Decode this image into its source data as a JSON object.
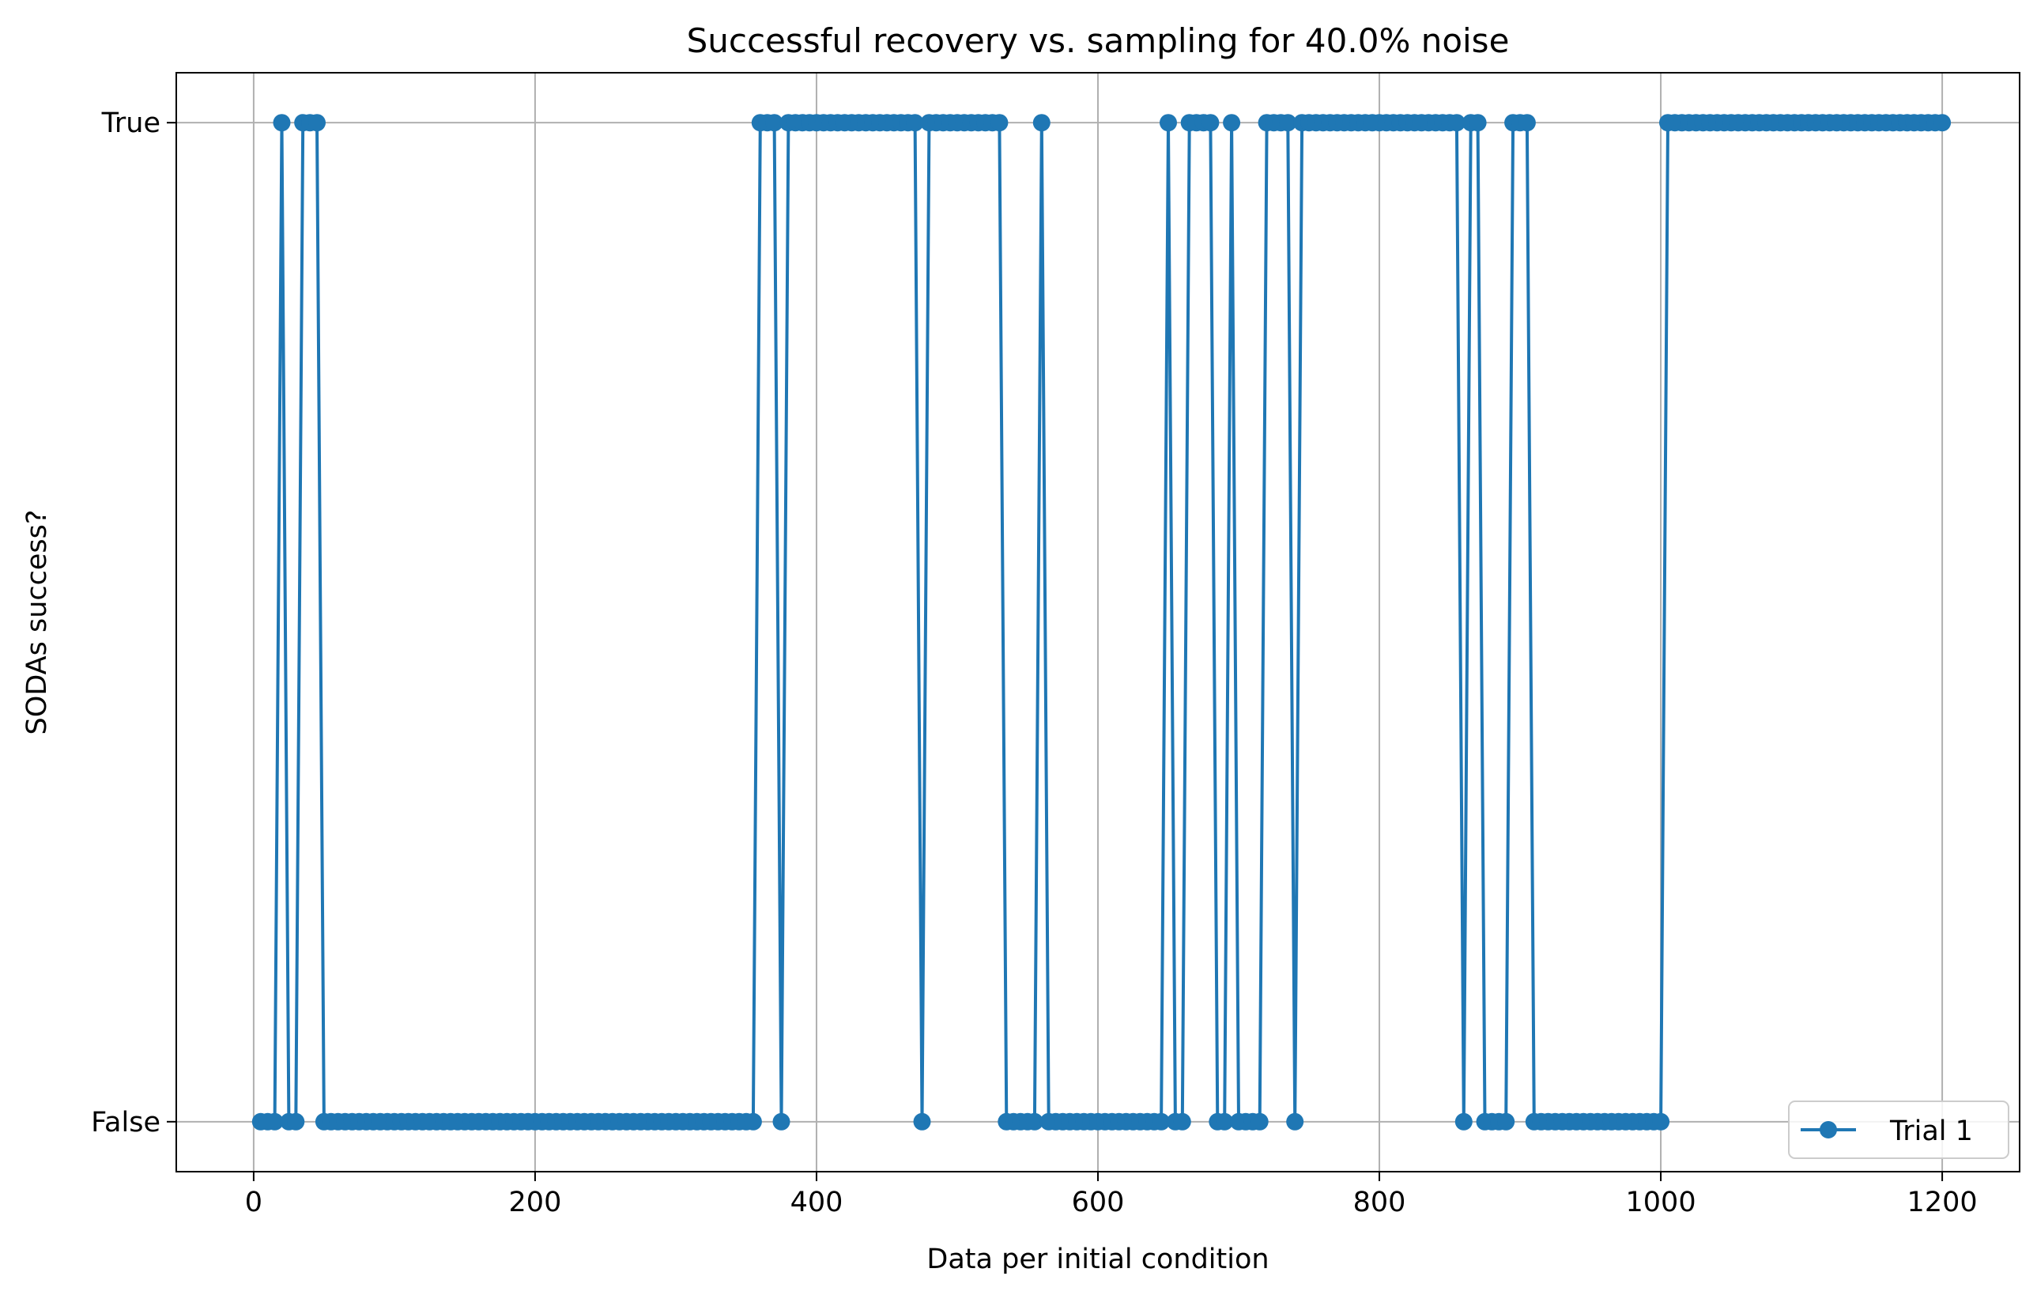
{
  "chart_data": {
    "type": "line",
    "title": "Successful recovery vs. sampling for 40.0% noise",
    "xlabel": "Data per initial condition",
    "ylabel": "SODAs success?",
    "xlim": [
      -55,
      1255
    ],
    "ylim": [
      -0.05,
      1.05
    ],
    "xticks": [
      0,
      200,
      400,
      600,
      800,
      1000,
      1200
    ],
    "xtick_labels": [
      "0",
      "200",
      "400",
      "600",
      "800",
      "1000",
      "1200"
    ],
    "yticks": [
      0,
      1
    ],
    "ytick_labels": [
      "False",
      "True"
    ],
    "grid": true,
    "legend_position": "lower-right",
    "marker": "circle",
    "series": [
      {
        "name": "Trial 1",
        "color": "#1f77b4",
        "x_start": 5,
        "x_step": 5,
        "values": [
          0,
          0,
          0,
          1,
          0,
          0,
          1,
          1,
          1,
          0,
          0,
          0,
          0,
          0,
          0,
          0,
          0,
          0,
          0,
          0,
          0,
          0,
          0,
          0,
          0,
          0,
          0,
          0,
          0,
          0,
          0,
          0,
          0,
          0,
          0,
          0,
          0,
          0,
          0,
          0,
          0,
          0,
          0,
          0,
          0,
          0,
          0,
          0,
          0,
          0,
          0,
          0,
          0,
          0,
          0,
          0,
          0,
          0,
          0,
          0,
          0,
          0,
          0,
          0,
          0,
          0,
          0,
          0,
          0,
          0,
          0,
          1,
          1,
          1,
          0,
          1,
          1,
          1,
          1,
          1,
          1,
          1,
          1,
          1,
          1,
          1,
          1,
          1,
          1,
          1,
          1,
          1,
          1,
          1,
          0,
          1,
          1,
          1,
          1,
          1,
          1,
          1,
          1,
          1,
          1,
          1,
          0,
          0,
          0,
          0,
          0,
          1,
          0,
          0,
          0,
          0,
          0,
          0,
          0,
          0,
          0,
          0,
          0,
          0,
          0,
          0,
          0,
          0,
          0,
          1,
          0,
          0,
          1,
          1,
          1,
          1,
          0,
          0,
          1,
          0,
          0,
          0,
          0,
          1,
          1,
          1,
          1,
          0,
          1,
          1,
          1,
          1,
          1,
          1,
          1,
          1,
          1,
          1,
          1,
          1,
          1,
          1,
          1,
          1,
          1,
          1,
          1,
          1,
          1,
          1,
          1,
          0,
          1,
          1,
          0,
          0,
          0,
          0,
          1,
          1,
          1,
          0,
          0,
          0,
          0,
          0,
          0,
          0,
          0,
          0,
          0,
          0,
          0,
          0,
          0,
          0,
          0,
          0,
          0,
          0,
          1,
          1,
          1,
          1,
          1,
          1,
          1,
          1,
          1,
          1,
          1,
          1,
          1,
          1,
          1,
          1,
          1,
          1,
          1,
          1,
          1,
          1,
          1,
          1,
          1,
          1,
          1,
          1,
          1,
          1,
          1,
          1,
          1,
          1,
          1,
          1,
          1,
          1,
          1,
          1
        ]
      }
    ]
  }
}
